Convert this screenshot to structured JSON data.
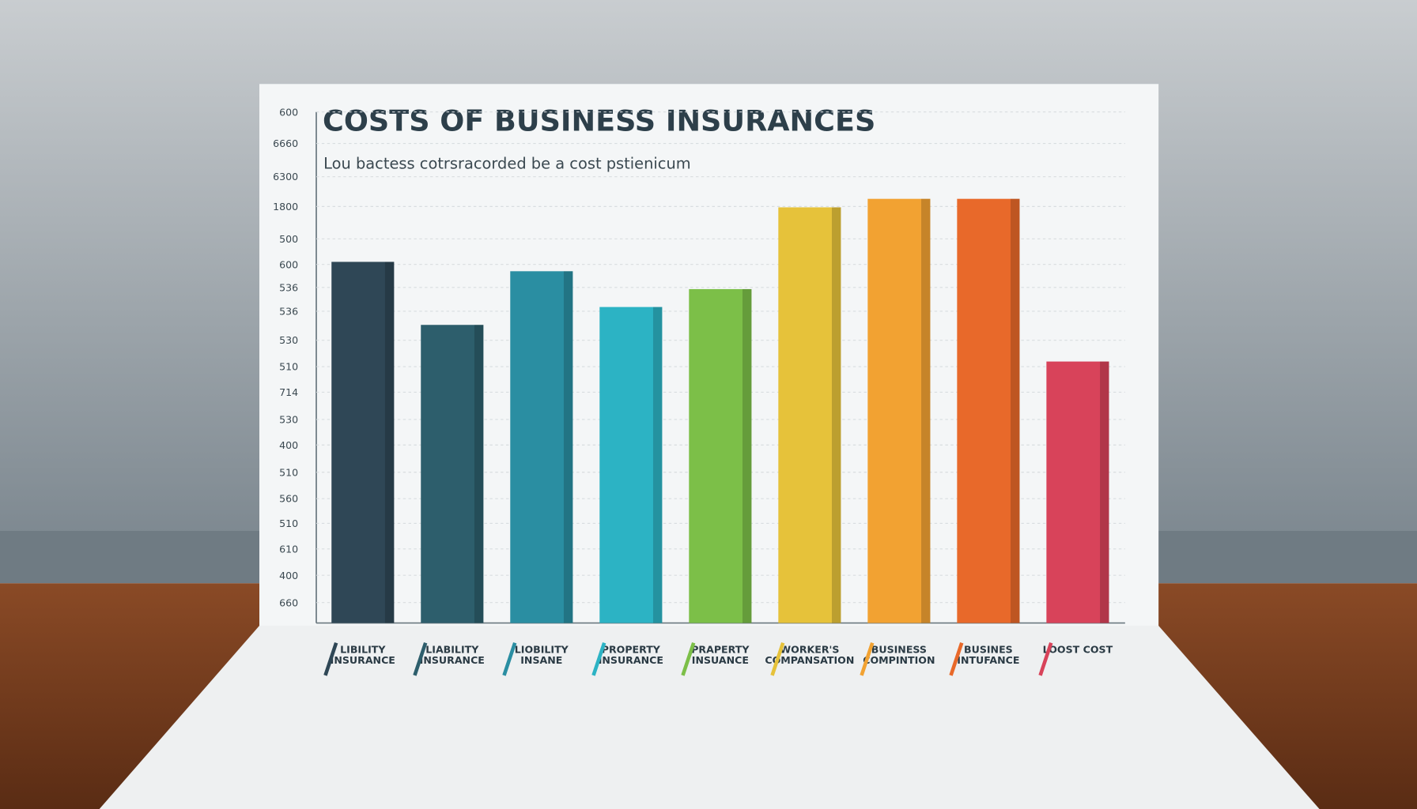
{
  "chart_data": {
    "type": "bar",
    "title": "COSTS OF BUSINESS INSURANCES",
    "subtitle": "Lou bactess cotrsracorded be a cost pstienicum",
    "categories": [
      "LIBILITY INSURANCE",
      "LIABILITY INSURANCE",
      "LIOBILITY INSANE",
      "PROPERTY INSURANCE",
      "PRAPERTY INSUANCE",
      "WORKER'S COMPANSATION",
      "BUSINESS COMPINTION",
      "BUSINES INTUFANCE",
      "LOOST COST"
    ],
    "values": [
      424,
      350,
      413,
      371,
      392,
      488,
      498,
      498,
      307
    ],
    "colors": [
      "#2f4756",
      "#2d5e6c",
      "#2a8ea2",
      "#2cb3c4",
      "#7cbf48",
      "#e6c23a",
      "#f2a232",
      "#e8692a",
      "#d8435a"
    ],
    "ylim": [
      0,
      600
    ],
    "yticks": [
      600,
      {
        "value": 563,
        "label": "6660"
      },
      {
        "value": 524,
        "label": "6300"
      },
      {
        "value": 489,
        "label": "1800"
      },
      {
        "value": 451,
        "label": "500"
      },
      {
        "value": 421,
        "label": "600"
      },
      {
        "value": 394,
        "label": "536"
      },
      {
        "value": 366,
        "label": "536"
      },
      {
        "value": 332,
        "label": "530"
      },
      {
        "value": 301,
        "label": "510"
      },
      {
        "value": 271,
        "label": "714"
      },
      {
        "value": 239,
        "label": "530"
      },
      {
        "value": 209,
        "label": "400"
      },
      {
        "value": 177,
        "label": "510"
      },
      {
        "value": 146,
        "label": "560"
      },
      {
        "value": 117,
        "label": "510"
      },
      {
        "value": 87,
        "label": "610"
      },
      {
        "value": 56,
        "label": "400"
      },
      {
        "value": 24,
        "label": "660"
      }
    ],
    "grid": true
  }
}
